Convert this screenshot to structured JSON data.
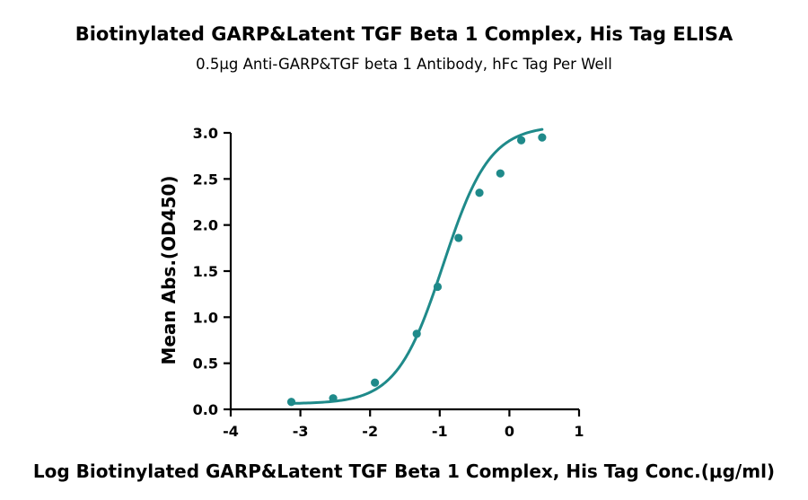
{
  "chart_data": {
    "type": "scatter",
    "title": "Biotinylated GARP&Latent TGF Beta 1 Complex, His Tag ELISA",
    "subtitle": "0.5μg Anti-GARP&TGF beta 1 Antibody, hFc Tag Per Well",
    "xlabel": "Log Biotinylated GARP&Latent TGF Beta 1 Complex, His  Tag Conc.(μg/ml)",
    "ylabel": "Mean Abs.(OD450)",
    "xlim": [
      -4,
      1
    ],
    "ylim": [
      0,
      3.0
    ],
    "xticks": [
      "-4",
      "-3",
      "-2",
      "-1",
      "0",
      "1"
    ],
    "yticks": [
      "0.0",
      "0.5",
      "1.0",
      "1.5",
      "2.0",
      "2.5",
      "3.0"
    ],
    "grid": false,
    "legend": "none",
    "color": "#1f8a8a",
    "series": [
      {
        "x": [
          -3.13,
          -2.53,
          -1.93,
          -1.33,
          -1.03,
          -0.73,
          -0.43,
          -0.13,
          0.17,
          0.47
        ],
        "y": [
          0.08,
          0.12,
          0.29,
          0.82,
          1.33,
          1.86,
          2.35,
          2.56,
          2.92,
          2.95
        ]
      }
    ],
    "fit": {
      "type": "4PL",
      "bottom": 0.06,
      "top": 3.08,
      "logEC50": -0.95,
      "hill": 1.3
    }
  }
}
